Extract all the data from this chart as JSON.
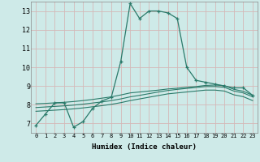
{
  "xlabel": "Humidex (Indice chaleur)",
  "background_color": "#ceeae8",
  "grid_color": "#d4b8b8",
  "line_color": "#2a7a6a",
  "xlim": [
    -0.5,
    23.5
  ],
  "ylim": [
    6.5,
    13.5
  ],
  "xticks": [
    0,
    1,
    2,
    3,
    4,
    5,
    6,
    7,
    8,
    9,
    10,
    11,
    12,
    13,
    14,
    15,
    16,
    17,
    18,
    19,
    20,
    21,
    22,
    23
  ],
  "yticks": [
    7,
    8,
    9,
    10,
    11,
    12,
    13
  ],
  "main_series": [
    6.9,
    7.5,
    8.1,
    8.1,
    6.8,
    7.1,
    7.8,
    8.2,
    8.4,
    10.3,
    13.4,
    12.6,
    13.0,
    13.0,
    12.9,
    12.6,
    10.0,
    9.3,
    9.2,
    9.1,
    9.0,
    8.9,
    8.9,
    8.5
  ],
  "flat_series": [
    [
      8.05,
      8.07,
      8.1,
      8.13,
      8.17,
      8.22,
      8.28,
      8.35,
      8.42,
      8.52,
      8.63,
      8.68,
      8.73,
      8.78,
      8.84,
      8.88,
      8.93,
      8.97,
      9.03,
      9.05,
      9.02,
      8.82,
      8.72,
      8.5
    ],
    [
      7.85,
      7.88,
      7.91,
      7.94,
      7.98,
      8.03,
      8.09,
      8.15,
      8.22,
      8.31,
      8.42,
      8.5,
      8.59,
      8.68,
      8.76,
      8.82,
      8.87,
      8.92,
      8.97,
      8.97,
      8.93,
      8.73,
      8.63,
      8.42
    ],
    [
      7.65,
      7.68,
      7.71,
      7.74,
      7.78,
      7.83,
      7.89,
      7.95,
      8.02,
      8.11,
      8.22,
      8.31,
      8.4,
      8.49,
      8.58,
      8.63,
      8.68,
      8.73,
      8.78,
      8.78,
      8.73,
      8.53,
      8.43,
      8.22
    ]
  ]
}
